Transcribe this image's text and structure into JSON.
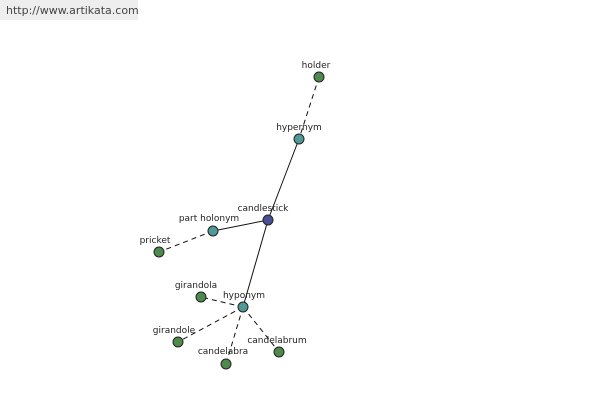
{
  "header": {
    "url": "http://www.artikata.com"
  },
  "nodes": [
    {
      "label": "holder"
    },
    {
      "label": "hypernym"
    },
    {
      "label": "candlestick"
    },
    {
      "label": "part holonym"
    },
    {
      "label": "pricket"
    },
    {
      "label": "hyponym"
    },
    {
      "label": "girandola"
    },
    {
      "label": "girandole"
    },
    {
      "label": "candelabra"
    },
    {
      "label": "candelabrum"
    }
  ]
}
